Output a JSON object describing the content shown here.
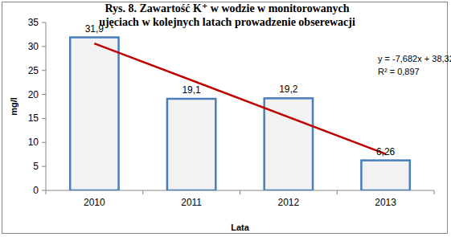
{
  "chart_data": {
    "type": "bar",
    "title": "Rys. 8.  Zawartość K⁺  w wodzie w  monitorowanych ujęciach w kolejnych latach prowadzenie obserewacji",
    "x_label": "Lata",
    "y_label": "mg/l",
    "categories": [
      "2010",
      "2011",
      "2012",
      "2013"
    ],
    "values": [
      31.9,
      19.1,
      19.2,
      6.26
    ],
    "value_labels": [
      "31,9",
      "19,1",
      "19,2",
      "6,26"
    ],
    "data_labels": true,
    "color": "#f2f2f2",
    "ylim": [
      0,
      35
    ],
    "yticks": [
      0,
      5,
      10,
      15,
      20,
      25,
      30,
      35
    ],
    "grid": false,
    "trendline": {
      "slope": -7.682,
      "intercept": 38.32,
      "color": "#c00000",
      "equation": "y = -7,682x + 38,32",
      "r_squared": "R² = 0,897"
    }
  }
}
